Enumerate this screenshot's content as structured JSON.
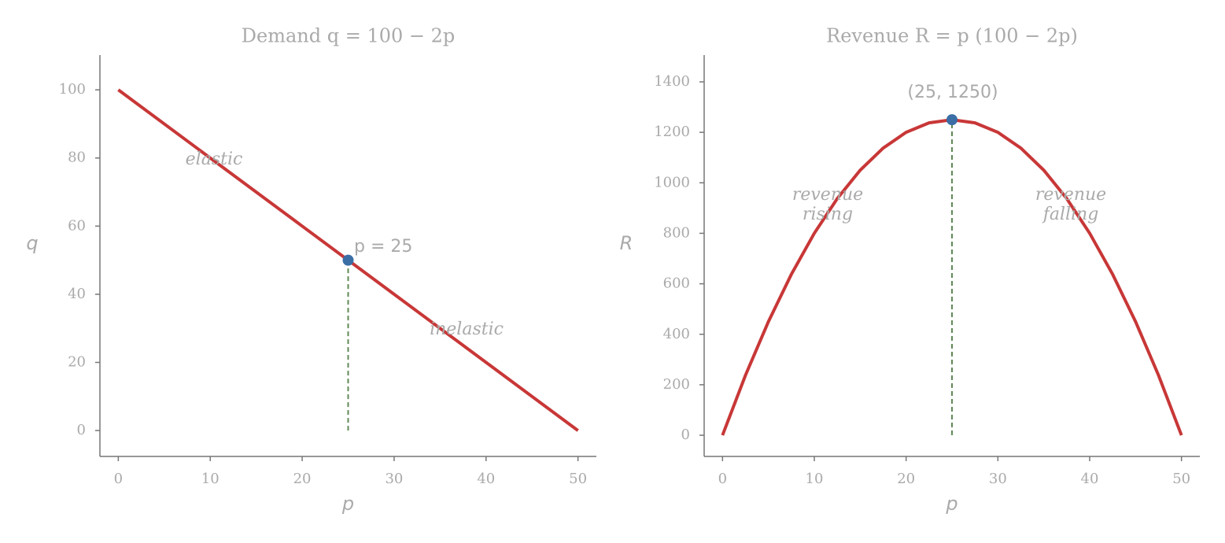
{
  "chart_data": [
    {
      "type": "line",
      "title": "Demand q = 100 − 2p",
      "xlabel": "p",
      "ylabel": "q",
      "x": [
        0,
        50
      ],
      "values": [
        100,
        0
      ],
      "color": "#c83737",
      "marker": {
        "x": 25,
        "y": 50,
        "color": "#3a6ea5"
      },
      "guide_color": "#5f8a55",
      "annotations": [
        [
          "elastic"
        ],
        [
          "inelastic"
        ],
        [
          "p = 25"
        ]
      ],
      "xlim": [
        -2,
        52
      ],
      "xticks": [
        0,
        10,
        20,
        30,
        40,
        50
      ],
      "ylim": [
        -7.6,
        110.2
      ],
      "yticks": [
        0,
        20,
        40,
        60,
        80,
        100
      ]
    },
    {
      "type": "line",
      "title": "Revenue R = p (100 − 2p)",
      "xlabel": "p",
      "ylabel": "R",
      "x": [
        0,
        2.5,
        5,
        7.5,
        10,
        12.5,
        15,
        17.5,
        20,
        22.5,
        25,
        27.5,
        30,
        32.5,
        35,
        37.5,
        40,
        42.5,
        45,
        47.5,
        50
      ],
      "values": [
        0,
        237.5,
        450,
        637.5,
        800,
        937.5,
        1050,
        1137.5,
        1200,
        1237.5,
        1250,
        1237.5,
        1200,
        1137.5,
        1050,
        937.5,
        800,
        637.5,
        450,
        237.5,
        0
      ],
      "color": "#c83737",
      "marker": {
        "x": 25,
        "y": 1250,
        "color": "#3a6ea5"
      },
      "guide_color": "#5f8a55",
      "annotations": [
        [
          "(25, 1250)"
        ],
        [
          "revenue",
          "rising"
        ],
        [
          "revenue",
          "falling"
        ]
      ],
      "xlim": [
        -2,
        52
      ],
      "xticks": [
        0,
        10,
        20,
        30,
        40,
        50
      ],
      "ylim": [
        -84,
        1506
      ],
      "yticks": [
        0,
        200,
        400,
        600,
        800,
        1000,
        1200,
        1400
      ]
    }
  ]
}
